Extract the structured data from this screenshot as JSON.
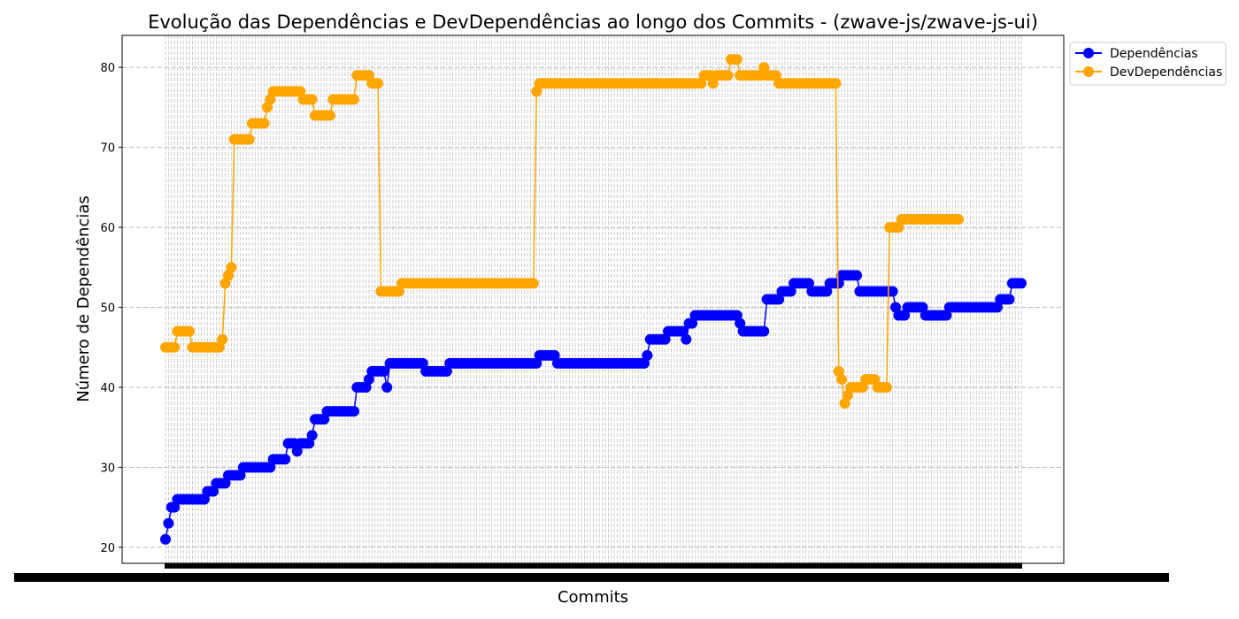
{
  "chart_data": {
    "type": "line",
    "title": "Evolução das Dependências e DevDependências ao longo dos Commits - (zwave-js/zwave-js-ui)",
    "xlabel": "Commits",
    "ylabel": "Número de Dependências",
    "ylim": [
      18,
      84
    ],
    "yticks": [
      20,
      30,
      40,
      50,
      60,
      70,
      80
    ],
    "grid": true,
    "legend_position": "outside-top-right",
    "x_tick_labels_note": "commit hashes, overlapping and illegible",
    "series": [
      {
        "name": "Dependências",
        "color": "#0000ff",
        "steps": [
          [
            21,
            1
          ],
          [
            23,
            1
          ],
          [
            25,
            2
          ],
          [
            26,
            10
          ],
          [
            27,
            3
          ],
          [
            28,
            4
          ],
          [
            29,
            5
          ],
          [
            30,
            10
          ],
          [
            31,
            5
          ],
          [
            33,
            3
          ],
          [
            32,
            1
          ],
          [
            33,
            4
          ],
          [
            34,
            1
          ],
          [
            36,
            4
          ],
          [
            37,
            10
          ],
          [
            40,
            4
          ],
          [
            41,
            1
          ],
          [
            42,
            5
          ],
          [
            40,
            1
          ],
          [
            43,
            12
          ],
          [
            42,
            8
          ],
          [
            43,
            30
          ],
          [
            44,
            6
          ],
          [
            43,
            30
          ],
          [
            44,
            1
          ],
          [
            46,
            6
          ],
          [
            47,
            6
          ],
          [
            46,
            1
          ],
          [
            48,
            2
          ],
          [
            49,
            15
          ],
          [
            48,
            1
          ],
          [
            47,
            8
          ],
          [
            51,
            5
          ],
          [
            52,
            4
          ],
          [
            53,
            6
          ],
          [
            52,
            6
          ],
          [
            53,
            4
          ],
          [
            54,
            6
          ],
          [
            52,
            12
          ],
          [
            50,
            1
          ],
          [
            49,
            3
          ],
          [
            50,
            6
          ],
          [
            49,
            8
          ],
          [
            50,
            17
          ],
          [
            51,
            4
          ],
          [
            53,
            4
          ]
        ]
      },
      {
        "name": "DevDependências",
        "color": "#ffa500",
        "steps": [
          [
            45,
            4
          ],
          [
            47,
            5
          ],
          [
            45,
            10
          ],
          [
            46,
            1
          ],
          [
            53,
            1
          ],
          [
            54,
            1
          ],
          [
            55,
            1
          ],
          [
            71,
            6
          ],
          [
            73,
            5
          ],
          [
            75,
            1
          ],
          [
            76,
            1
          ],
          [
            77,
            10
          ],
          [
            76,
            4
          ],
          [
            74,
            6
          ],
          [
            76,
            8
          ],
          [
            79,
            5
          ],
          [
            78,
            3
          ],
          [
            52,
            7
          ],
          [
            53,
            45
          ],
          [
            77,
            1
          ],
          [
            78,
            55
          ],
          [
            79,
            3
          ],
          [
            78,
            1
          ],
          [
            79,
            5
          ],
          [
            81,
            3
          ],
          [
            79,
            8
          ],
          [
            80,
            1
          ],
          [
            79,
            4
          ],
          [
            78,
            20
          ],
          [
            42,
            1
          ],
          [
            41,
            1
          ],
          [
            38,
            1
          ],
          [
            39,
            1
          ],
          [
            40,
            5
          ],
          [
            41,
            4
          ],
          [
            40,
            4
          ],
          [
            60,
            4
          ],
          [
            61,
            20
          ]
        ]
      }
    ]
  },
  "legend": {
    "items": [
      "Dependências",
      "DevDependências"
    ]
  }
}
